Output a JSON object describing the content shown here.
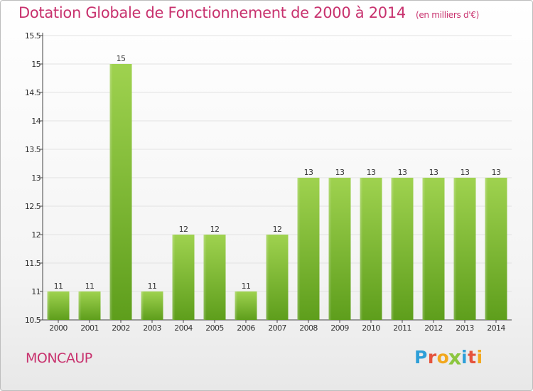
{
  "header": {
    "title": "Dotation Globale de Fonctionnement de 2000 à 2014",
    "subtitle": "(en milliers d'€)"
  },
  "footer": {
    "commune": "MONCAUP",
    "brand": "Proxiti",
    "brand_letters": [
      {
        "char": "P",
        "color": "#2e9fd8"
      },
      {
        "char": "r",
        "color": "#e5533c"
      },
      {
        "char": "o",
        "color": "#f2a81d"
      },
      {
        "char": "x",
        "color": "#8cc63f"
      },
      {
        "char": "i",
        "color": "#2e9fd8"
      },
      {
        "char": "t",
        "color": "#e5533c"
      },
      {
        "char": "i",
        "color": "#f2a81d"
      }
    ]
  },
  "colors": {
    "accent": "#c8326e",
    "bar_light": "#9fd24f",
    "bar_dark": "#5e9e1c"
  },
  "chart_data": {
    "type": "bar",
    "title": "Dotation Globale de Fonctionnement de 2000 à 2014",
    "subtitle": "(en milliers d'€)",
    "categories": [
      "2000",
      "2001",
      "2002",
      "2003",
      "2004",
      "2005",
      "2006",
      "2007",
      "2008",
      "2009",
      "2010",
      "2011",
      "2012",
      "2013",
      "2014"
    ],
    "values": [
      11,
      11,
      15,
      11,
      12,
      12,
      11,
      12,
      13,
      13,
      13,
      13,
      13,
      13,
      13
    ],
    "data_labels": [
      "11",
      "11",
      "15",
      "11",
      "12",
      "12",
      "11",
      "12",
      "13",
      "13",
      "13",
      "13",
      "13",
      "13",
      "13"
    ],
    "ylim": [
      10.5,
      15.5
    ],
    "yticks": [
      "10.5",
      "11",
      "11.5",
      "12",
      "12.5",
      "13",
      "13.5",
      "14",
      "14.5",
      "15",
      "15.5"
    ],
    "grid": "horizontal",
    "xlabel": "",
    "ylabel": ""
  }
}
